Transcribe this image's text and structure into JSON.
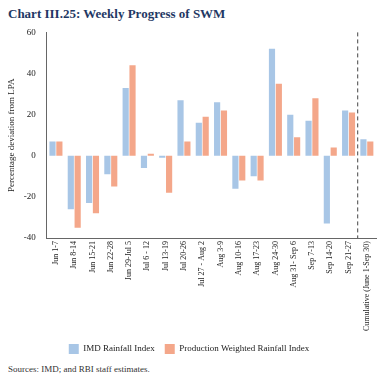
{
  "chart_data": {
    "type": "bar",
    "title": "Chart III.25: Weekly Progress of SWM",
    "y_label": "Percentage deviation from LPA",
    "categories": [
      "Jun 1-7",
      "Jun 8-14",
      "Jun 15-21",
      "Jun 22-28",
      "Jun 29-Jul 5",
      "Jul 6 - 12",
      "Jul 13-19",
      "Jul 20-26",
      "Jul 27 - Aug 2",
      "Aug 3-9",
      "Aug 10-16",
      "Aug 17-23",
      "Aug 24-30",
      "Aug 31- Sep 6",
      "Sep 7-13",
      "Sep 14-20",
      "Sep 21-27",
      "Cumulative (June 1-Sep 30)"
    ],
    "series": [
      {
        "name": "IMD Rainfall Index",
        "color": "#a8c6e6",
        "values": [
          7,
          -26,
          -23,
          -9,
          33,
          -6,
          -1,
          27,
          16,
          26,
          -16,
          -10,
          52,
          20,
          17,
          -33,
          22,
          8
        ]
      },
      {
        "name": "Production Weighted Rainfall Index",
        "color": "#f4a78a",
        "values": [
          7,
          -35,
          -28,
          -15,
          44,
          1,
          -18,
          7,
          19,
          22,
          -12,
          -12,
          35,
          9,
          28,
          4,
          21,
          7
        ]
      }
    ],
    "ylim": [
      -40,
      60
    ],
    "yticks": [
      -40,
      -20,
      0,
      20,
      40,
      60
    ],
    "grid": false,
    "legend": "bottom",
    "annotations": [
      "Sources: IMD; and RBI staff estimates."
    ]
  }
}
